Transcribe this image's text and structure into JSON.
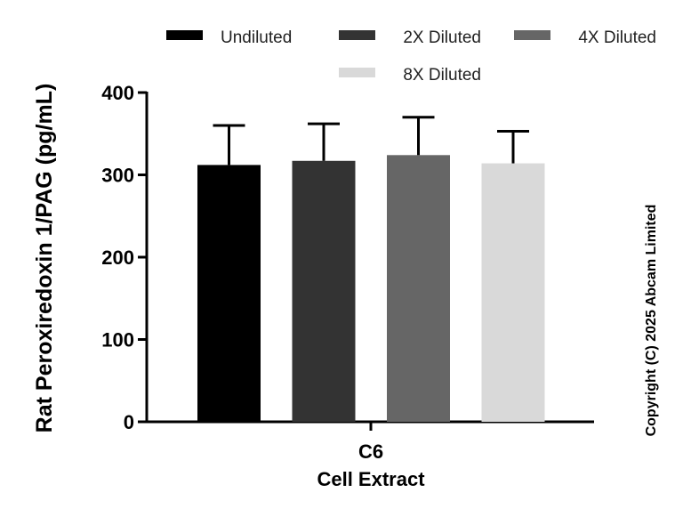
{
  "chart_data": {
    "type": "bar",
    "categories": [
      "C6"
    ],
    "xlabel": "Cell Extract",
    "ylabel": "Rat Peroxiredoxin 1/PAG (pg/mL)",
    "ylim": [
      0,
      400
    ],
    "yticks": [
      0,
      100,
      200,
      300,
      400
    ],
    "grid": false,
    "legend_position": "top",
    "series": [
      {
        "name": "Undiluted",
        "values": [
          312
        ],
        "error": [
          48
        ],
        "color": "#000000"
      },
      {
        "name": "2X Diluted",
        "values": [
          317
        ],
        "error": [
          45
        ],
        "color": "#333333"
      },
      {
        "name": "4X Diluted",
        "values": [
          324
        ],
        "error": [
          46
        ],
        "color": "#666666"
      },
      {
        "name": "8X Diluted",
        "values": [
          314
        ],
        "error": [
          39
        ],
        "color": "#d9d9d9"
      }
    ]
  },
  "copyright": "Copyright (C) 2025 Abcam Limited"
}
